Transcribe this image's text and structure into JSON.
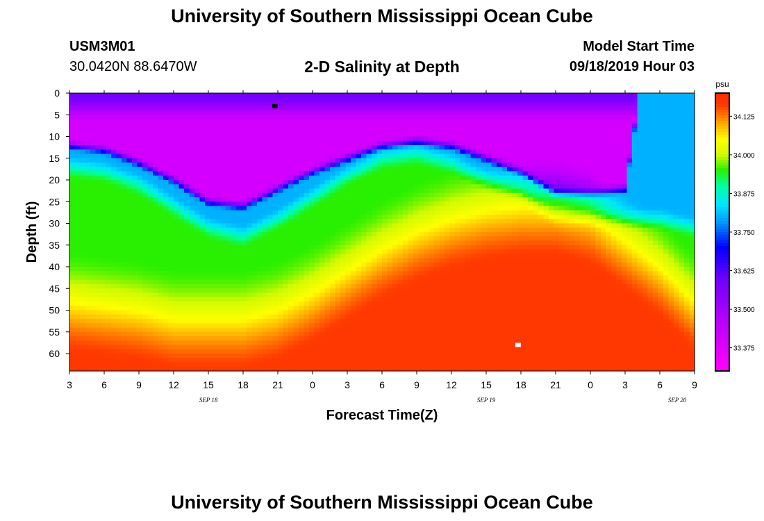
{
  "header": {
    "title": "University of Southern Mississippi Ocean Cube",
    "station_id": "USM3M01",
    "coordinates": "30.0420N 88.6470W",
    "subtitle": "2-D Salinity at Depth",
    "model_start_label": "Model Start Time",
    "model_start_value": "09/18/2019 Hour 03"
  },
  "footer": {
    "title": "University of Southern Mississippi Ocean Cube"
  },
  "chart_data": {
    "type": "heatmap",
    "title": "2-D Salinity at Depth",
    "xlabel": "Forecast Time(Z)",
    "ylabel": "Depth (ft)",
    "x_range_hours": [
      0,
      54
    ],
    "x_ticks": [
      "3",
      "6",
      "9",
      "12",
      "15",
      "18",
      "21",
      "0",
      "3",
      "6",
      "9",
      "12",
      "15",
      "18",
      "21",
      "0",
      "3",
      "6",
      "9"
    ],
    "day_labels": [
      {
        "label": "SEP 18",
        "hour": 12
      },
      {
        "label": "SEP 19",
        "hour": 36
      },
      {
        "label": "SEP 20",
        "hour": 52.5
      }
    ],
    "ylim": [
      0,
      64
    ],
    "y_ticks": [
      0,
      5,
      10,
      15,
      20,
      25,
      30,
      35,
      40,
      45,
      50,
      55,
      60
    ],
    "colorbar": {
      "unit": "psu",
      "range": [
        33.3,
        34.2
      ],
      "labels": [
        "34.125",
        "34.000",
        "33.875",
        "33.750",
        "33.625",
        "33.500",
        "33.375"
      ],
      "label_values": [
        34.125,
        34.0,
        33.875,
        33.75,
        33.625,
        33.5,
        33.375
      ]
    },
    "level_boundaries": [
      {
        "t": 0,
        "fresh": 12,
        "mid": 16,
        "warm": 62
      },
      {
        "t": 3,
        "fresh": 13,
        "mid": 17,
        "warm": 63
      },
      {
        "t": 6,
        "fresh": 16,
        "mid": 20,
        "warm": 64
      },
      {
        "t": 9,
        "fresh": 20,
        "mid": 25,
        "warm": 66
      },
      {
        "t": 12,
        "fresh": 25,
        "mid": 30,
        "warm": 66
      },
      {
        "t": 15,
        "fresh": 26,
        "mid": 32,
        "warm": 66
      },
      {
        "t": 18,
        "fresh": 22,
        "mid": 28,
        "warm": 64
      },
      {
        "t": 21,
        "fresh": 18,
        "mid": 23,
        "warm": 60
      },
      {
        "t": 24,
        "fresh": 15,
        "mid": 18,
        "warm": 55
      },
      {
        "t": 27,
        "fresh": 12,
        "mid": 14,
        "warm": 50
      },
      {
        "t": 30,
        "fresh": 11,
        "mid": 13,
        "warm": 46
      },
      {
        "t": 33,
        "fresh": 12,
        "mid": 15,
        "warm": 43
      },
      {
        "t": 36,
        "fresh": 15,
        "mid": 19,
        "warm": 41
      },
      {
        "t": 39,
        "fresh": 18,
        "mid": 22,
        "warm": 40
      },
      {
        "t": 42,
        "fresh": 23,
        "mid": 28,
        "warm": 40
      },
      {
        "t": 45,
        "fresh": 23,
        "mid": 28,
        "warm": 42
      },
      {
        "t": 48,
        "fresh": 22,
        "mid": 28,
        "warm": 48
      },
      {
        "t": 51,
        "fresh": -30,
        "mid": 28,
        "warm": 54
      },
      {
        "t": 54,
        "fresh": -30,
        "mid": 30,
        "warm": 62
      }
    ],
    "zone_salinity": {
      "surface": 33.6,
      "fresh": 33.4,
      "mid": 33.8,
      "green": 33.95,
      "warm": 34.17
    },
    "markers": [
      {
        "name": "min-marker",
        "hour": 17.75,
        "depth": 3,
        "color": "#000000"
      },
      {
        "name": "max-marker",
        "hour": 38.75,
        "depth": 58,
        "color": "#ffffff"
      }
    ]
  }
}
